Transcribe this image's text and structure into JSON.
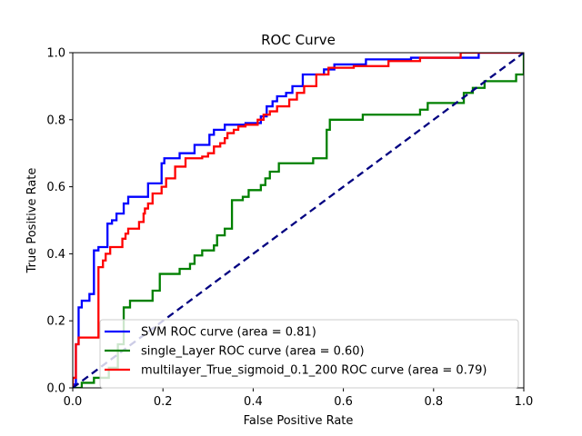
{
  "chart_data": {
    "type": "line",
    "title": "ROC Curve",
    "xlabel": "False Positive Rate",
    "ylabel": "True Positive Rate",
    "xlim": [
      0.0,
      1.0
    ],
    "ylim": [
      0.0,
      1.0
    ],
    "x_ticks": [
      "0.0",
      "0.2",
      "0.4",
      "0.6",
      "0.8",
      "1.0"
    ],
    "y_ticks": [
      "0.0",
      "0.2",
      "0.4",
      "0.6",
      "0.8",
      "1.0"
    ],
    "grid": false,
    "legend_position": "lower-right",
    "series": [
      {
        "name": "SVM ROC curve (area = 0.81)",
        "color": "#0000ff",
        "style": "solid",
        "points": [
          [
            0.0,
            0.0
          ],
          [
            0.0,
            0.01
          ],
          [
            0.007,
            0.01
          ],
          [
            0.007,
            0.13
          ],
          [
            0.013,
            0.13
          ],
          [
            0.013,
            0.24
          ],
          [
            0.02,
            0.24
          ],
          [
            0.02,
            0.26
          ],
          [
            0.037,
            0.26
          ],
          [
            0.037,
            0.28
          ],
          [
            0.047,
            0.28
          ],
          [
            0.047,
            0.41
          ],
          [
            0.057,
            0.41
          ],
          [
            0.057,
            0.42
          ],
          [
            0.077,
            0.42
          ],
          [
            0.077,
            0.49
          ],
          [
            0.087,
            0.49
          ],
          [
            0.087,
            0.5
          ],
          [
            0.097,
            0.5
          ],
          [
            0.097,
            0.52
          ],
          [
            0.113,
            0.52
          ],
          [
            0.113,
            0.55
          ],
          [
            0.123,
            0.55
          ],
          [
            0.123,
            0.57
          ],
          [
            0.167,
            0.57
          ],
          [
            0.167,
            0.61
          ],
          [
            0.197,
            0.61
          ],
          [
            0.197,
            0.67
          ],
          [
            0.203,
            0.67
          ],
          [
            0.203,
            0.685
          ],
          [
            0.237,
            0.685
          ],
          [
            0.237,
            0.7
          ],
          [
            0.27,
            0.7
          ],
          [
            0.27,
            0.725
          ],
          [
            0.303,
            0.725
          ],
          [
            0.303,
            0.755
          ],
          [
            0.313,
            0.755
          ],
          [
            0.313,
            0.77
          ],
          [
            0.337,
            0.77
          ],
          [
            0.337,
            0.785
          ],
          [
            0.383,
            0.785
          ],
          [
            0.383,
            0.79
          ],
          [
            0.417,
            0.79
          ],
          [
            0.417,
            0.81
          ],
          [
            0.43,
            0.81
          ],
          [
            0.43,
            0.84
          ],
          [
            0.443,
            0.84
          ],
          [
            0.443,
            0.855
          ],
          [
            0.453,
            0.855
          ],
          [
            0.453,
            0.87
          ],
          [
            0.473,
            0.87
          ],
          [
            0.473,
            0.88
          ],
          [
            0.487,
            0.88
          ],
          [
            0.487,
            0.9
          ],
          [
            0.51,
            0.9
          ],
          [
            0.51,
            0.935
          ],
          [
            0.557,
            0.935
          ],
          [
            0.557,
            0.95
          ],
          [
            0.58,
            0.95
          ],
          [
            0.58,
            0.965
          ],
          [
            0.65,
            0.965
          ],
          [
            0.65,
            0.98
          ],
          [
            0.75,
            0.98
          ],
          [
            0.75,
            0.985
          ],
          [
            0.9,
            0.985
          ],
          [
            0.9,
            1.0
          ],
          [
            1.0,
            1.0
          ]
        ]
      },
      {
        "name": "single_Layer ROC curve (area = 0.60)",
        "color": "#008000",
        "style": "solid",
        "points": [
          [
            0.0,
            0.0
          ],
          [
            0.02,
            0.0
          ],
          [
            0.02,
            0.015
          ],
          [
            0.047,
            0.015
          ],
          [
            0.047,
            0.03
          ],
          [
            0.08,
            0.03
          ],
          [
            0.08,
            0.06
          ],
          [
            0.1,
            0.06
          ],
          [
            0.1,
            0.13
          ],
          [
            0.113,
            0.13
          ],
          [
            0.113,
            0.24
          ],
          [
            0.127,
            0.24
          ],
          [
            0.127,
            0.26
          ],
          [
            0.177,
            0.26
          ],
          [
            0.177,
            0.29
          ],
          [
            0.193,
            0.29
          ],
          [
            0.193,
            0.34
          ],
          [
            0.237,
            0.34
          ],
          [
            0.237,
            0.355
          ],
          [
            0.26,
            0.355
          ],
          [
            0.26,
            0.37
          ],
          [
            0.27,
            0.37
          ],
          [
            0.27,
            0.395
          ],
          [
            0.287,
            0.395
          ],
          [
            0.287,
            0.41
          ],
          [
            0.313,
            0.41
          ],
          [
            0.313,
            0.425
          ],
          [
            0.32,
            0.425
          ],
          [
            0.32,
            0.455
          ],
          [
            0.337,
            0.455
          ],
          [
            0.337,
            0.475
          ],
          [
            0.353,
            0.475
          ],
          [
            0.353,
            0.56
          ],
          [
            0.377,
            0.56
          ],
          [
            0.377,
            0.57
          ],
          [
            0.39,
            0.57
          ],
          [
            0.39,
            0.59
          ],
          [
            0.417,
            0.59
          ],
          [
            0.417,
            0.605
          ],
          [
            0.427,
            0.605
          ],
          [
            0.427,
            0.625
          ],
          [
            0.437,
            0.625
          ],
          [
            0.437,
            0.645
          ],
          [
            0.457,
            0.645
          ],
          [
            0.457,
            0.67
          ],
          [
            0.533,
            0.67
          ],
          [
            0.533,
            0.685
          ],
          [
            0.563,
            0.685
          ],
          [
            0.563,
            0.77
          ],
          [
            0.57,
            0.77
          ],
          [
            0.57,
            0.8
          ],
          [
            0.643,
            0.8
          ],
          [
            0.643,
            0.815
          ],
          [
            0.77,
            0.815
          ],
          [
            0.77,
            0.83
          ],
          [
            0.787,
            0.83
          ],
          [
            0.787,
            0.85
          ],
          [
            0.867,
            0.85
          ],
          [
            0.867,
            0.88
          ],
          [
            0.887,
            0.88
          ],
          [
            0.887,
            0.895
          ],
          [
            0.913,
            0.895
          ],
          [
            0.913,
            0.915
          ],
          [
            0.983,
            0.915
          ],
          [
            0.983,
            0.935
          ],
          [
            1.0,
            0.935
          ],
          [
            1.0,
            1.0
          ]
        ]
      },
      {
        "name": "multilayer_True_sigmoid_0.1_200 ROC curve (area = 0.79)",
        "color": "#ff0000",
        "style": "solid",
        "points": [
          [
            0.0,
            0.0
          ],
          [
            0.0,
            0.03
          ],
          [
            0.007,
            0.03
          ],
          [
            0.007,
            0.13
          ],
          [
            0.013,
            0.13
          ],
          [
            0.013,
            0.15
          ],
          [
            0.023,
            0.15
          ],
          [
            0.023,
            0.15
          ],
          [
            0.057,
            0.15
          ],
          [
            0.057,
            0.36
          ],
          [
            0.067,
            0.36
          ],
          [
            0.067,
            0.38
          ],
          [
            0.073,
            0.38
          ],
          [
            0.073,
            0.4
          ],
          [
            0.083,
            0.4
          ],
          [
            0.083,
            0.42
          ],
          [
            0.11,
            0.42
          ],
          [
            0.11,
            0.445
          ],
          [
            0.117,
            0.445
          ],
          [
            0.117,
            0.46
          ],
          [
            0.123,
            0.46
          ],
          [
            0.123,
            0.475
          ],
          [
            0.147,
            0.475
          ],
          [
            0.147,
            0.495
          ],
          [
            0.157,
            0.495
          ],
          [
            0.157,
            0.52
          ],
          [
            0.16,
            0.52
          ],
          [
            0.16,
            0.535
          ],
          [
            0.167,
            0.535
          ],
          [
            0.167,
            0.55
          ],
          [
            0.177,
            0.55
          ],
          [
            0.177,
            0.58
          ],
          [
            0.197,
            0.58
          ],
          [
            0.197,
            0.6
          ],
          [
            0.207,
            0.6
          ],
          [
            0.207,
            0.625
          ],
          [
            0.227,
            0.625
          ],
          [
            0.227,
            0.66
          ],
          [
            0.25,
            0.66
          ],
          [
            0.25,
            0.685
          ],
          [
            0.287,
            0.685
          ],
          [
            0.287,
            0.69
          ],
          [
            0.3,
            0.69
          ],
          [
            0.3,
            0.7
          ],
          [
            0.313,
            0.7
          ],
          [
            0.313,
            0.72
          ],
          [
            0.327,
            0.72
          ],
          [
            0.327,
            0.73
          ],
          [
            0.337,
            0.73
          ],
          [
            0.337,
            0.745
          ],
          [
            0.343,
            0.745
          ],
          [
            0.343,
            0.76
          ],
          [
            0.357,
            0.76
          ],
          [
            0.357,
            0.77
          ],
          [
            0.367,
            0.77
          ],
          [
            0.367,
            0.78
          ],
          [
            0.383,
            0.78
          ],
          [
            0.383,
            0.785
          ],
          [
            0.41,
            0.785
          ],
          [
            0.41,
            0.8
          ],
          [
            0.423,
            0.8
          ],
          [
            0.423,
            0.815
          ],
          [
            0.437,
            0.815
          ],
          [
            0.437,
            0.825
          ],
          [
            0.453,
            0.825
          ],
          [
            0.453,
            0.84
          ],
          [
            0.48,
            0.84
          ],
          [
            0.48,
            0.86
          ],
          [
            0.497,
            0.86
          ],
          [
            0.497,
            0.88
          ],
          [
            0.513,
            0.88
          ],
          [
            0.513,
            0.9
          ],
          [
            0.54,
            0.9
          ],
          [
            0.54,
            0.935
          ],
          [
            0.567,
            0.935
          ],
          [
            0.567,
            0.955
          ],
          [
            0.623,
            0.955
          ],
          [
            0.623,
            0.96
          ],
          [
            0.7,
            0.96
          ],
          [
            0.7,
            0.975
          ],
          [
            0.77,
            0.975
          ],
          [
            0.77,
            0.985
          ],
          [
            0.86,
            0.985
          ],
          [
            0.86,
            1.0
          ],
          [
            1.0,
            1.0
          ]
        ]
      },
      {
        "name": "",
        "color": "#000080",
        "style": "dashed",
        "points": [
          [
            0.0,
            0.0
          ],
          [
            1.0,
            1.0
          ]
        ]
      }
    ]
  }
}
